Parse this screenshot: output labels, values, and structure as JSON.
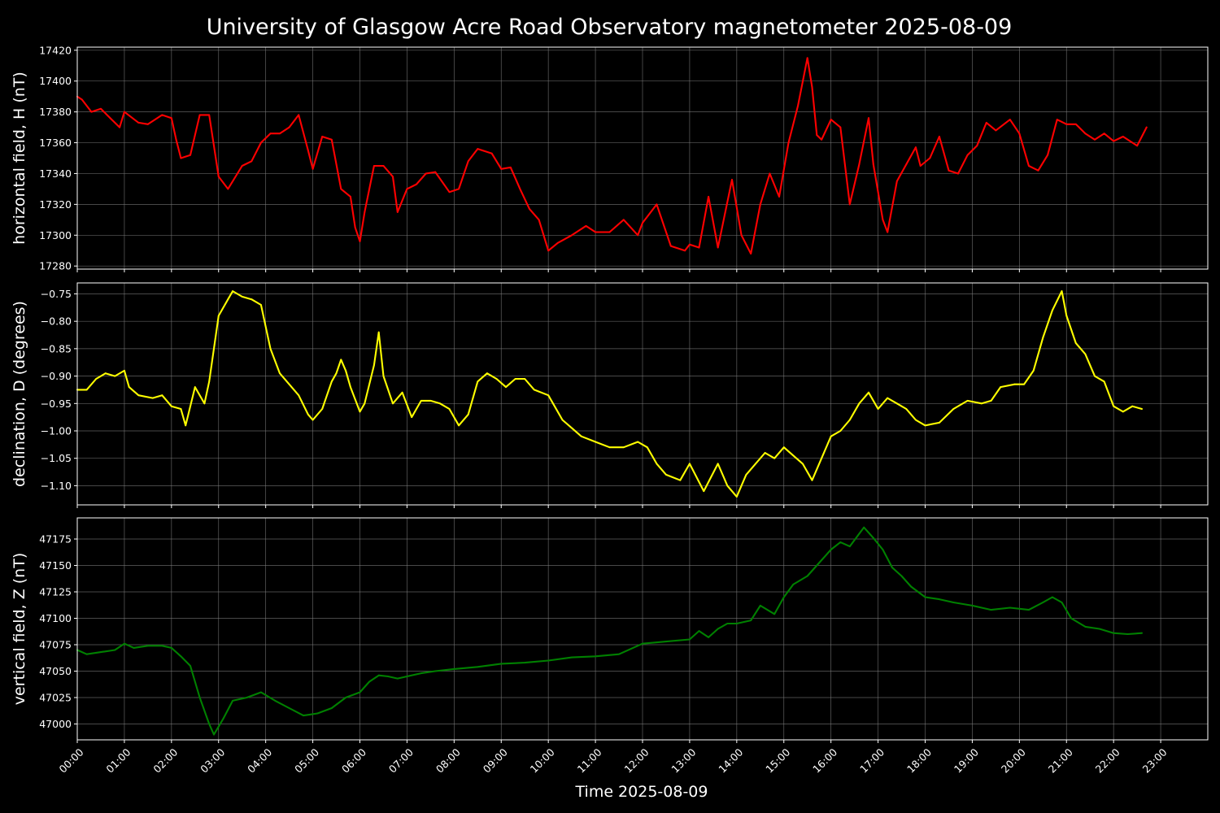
{
  "title": "University of Glasgow Acre Road Observatory magnetometer 2025-08-09",
  "xlabel": "Time 2025-08-09",
  "x_ticks": [
    "00:00",
    "01:00",
    "02:00",
    "03:00",
    "04:00",
    "05:00",
    "06:00",
    "07:00",
    "08:00",
    "09:00",
    "10:00",
    "11:00",
    "12:00",
    "13:00",
    "14:00",
    "15:00",
    "16:00",
    "17:00",
    "18:00",
    "19:00",
    "20:00",
    "21:00",
    "22:00",
    "23:00"
  ],
  "chart_data": [
    {
      "type": "line",
      "ylabel": "horizontal field, H (nT)",
      "xlim_hours": [
        0,
        24
      ],
      "ylim": [
        17278,
        17422
      ],
      "yticks": [
        17280,
        17300,
        17320,
        17340,
        17360,
        17380,
        17400,
        17420
      ],
      "ytick_labels": [
        "17280",
        "17300",
        "17320",
        "17340",
        "17360",
        "17380",
        "17400",
        "17420"
      ],
      "grid": true,
      "color": "#ff0000",
      "x_hours": [
        0.0,
        0.1,
        0.3,
        0.5,
        0.7,
        0.9,
        1.0,
        1.3,
        1.5,
        1.8,
        2.0,
        2.1,
        2.2,
        2.4,
        2.6,
        2.8,
        3.0,
        3.2,
        3.5,
        3.7,
        3.9,
        4.1,
        4.3,
        4.5,
        4.7,
        4.9,
        5.0,
        5.2,
        5.4,
        5.6,
        5.8,
        5.9,
        6.0,
        6.1,
        6.3,
        6.5,
        6.7,
        6.8,
        7.0,
        7.2,
        7.4,
        7.6,
        7.9,
        8.1,
        8.3,
        8.5,
        8.8,
        9.0,
        9.2,
        9.4,
        9.6,
        9.8,
        10.0,
        10.2,
        10.5,
        10.8,
        11.0,
        11.3,
        11.6,
        11.9,
        12.0,
        12.3,
        12.6,
        12.9,
        13.0,
        13.2,
        13.4,
        13.6,
        13.9,
        14.1,
        14.3,
        14.5,
        14.7,
        14.9,
        15.1,
        15.3,
        15.5,
        15.6,
        15.7,
        15.8,
        16.0,
        16.2,
        16.4,
        16.6,
        16.8,
        16.9,
        17.1,
        17.2,
        17.4,
        17.6,
        17.8,
        17.9,
        18.1,
        18.3,
        18.5,
        18.7,
        18.9,
        19.1,
        19.3,
        19.5,
        19.8,
        20.0,
        20.2,
        20.4,
        20.6,
        20.8,
        21.0,
        21.2,
        21.4,
        21.6,
        21.8,
        22.0,
        22.2,
        22.5,
        22.7
      ],
      "values": [
        17390,
        17388,
        17380,
        17382,
        17376,
        17370,
        17380,
        17373,
        17372,
        17378,
        17376,
        17362,
        17350,
        17352,
        17378,
        17378,
        17338,
        17330,
        17345,
        17348,
        17360,
        17366,
        17366,
        17370,
        17378,
        17355,
        17343,
        17364,
        17362,
        17330,
        17325,
        17305,
        17296,
        17315,
        17345,
        17345,
        17338,
        17315,
        17330,
        17333,
        17340,
        17341,
        17328,
        17330,
        17348,
        17356,
        17353,
        17343,
        17344,
        17330,
        17317,
        17310,
        17290,
        17295,
        17300,
        17306,
        17302,
        17302,
        17310,
        17300,
        17308,
        17320,
        17293,
        17290,
        17294,
        17292,
        17325,
        17292,
        17336,
        17300,
        17288,
        17320,
        17340,
        17325,
        17360,
        17384,
        17415,
        17396,
        17365,
        17362,
        17375,
        17370,
        17320,
        17346,
        17376,
        17346,
        17310,
        17302,
        17335,
        17346,
        17357,
        17345,
        17350,
        17364,
        17342,
        17340,
        17352,
        17358,
        17373,
        17368,
        17375,
        17366,
        17345,
        17342,
        17352,
        17375,
        17372,
        17372,
        17366,
        17362,
        17366,
        17361,
        17364,
        17358,
        17370
      ]
    },
    {
      "type": "line",
      "ylabel": "declination, D (degrees)",
      "xlim_hours": [
        0,
        24
      ],
      "ylim": [
        -1.135,
        -0.73
      ],
      "yticks": [
        -1.1,
        -1.05,
        -1.0,
        -0.95,
        -0.9,
        -0.85,
        -0.8,
        -0.75
      ],
      "ytick_labels": [
        "−1.10",
        "−1.05",
        "−1.00",
        "−0.95",
        "−0.90",
        "−0.85",
        "−0.80",
        "−0.75"
      ],
      "grid": true,
      "color": "#ffff00",
      "x_hours": [
        0.0,
        0.2,
        0.4,
        0.6,
        0.8,
        1.0,
        1.1,
        1.3,
        1.6,
        1.8,
        2.0,
        2.2,
        2.3,
        2.5,
        2.7,
        2.8,
        3.0,
        3.2,
        3.3,
        3.5,
        3.7,
        3.9,
        4.1,
        4.3,
        4.5,
        4.7,
        4.9,
        5.0,
        5.2,
        5.4,
        5.5,
        5.6,
        5.7,
        5.8,
        6.0,
        6.1,
        6.3,
        6.4,
        6.5,
        6.7,
        6.9,
        7.1,
        7.3,
        7.5,
        7.7,
        7.9,
        8.1,
        8.3,
        8.5,
        8.7,
        8.9,
        9.1,
        9.3,
        9.5,
        9.7,
        10.0,
        10.3,
        10.5,
        10.7,
        11.0,
        11.3,
        11.6,
        11.9,
        12.1,
        12.3,
        12.5,
        12.8,
        13.0,
        13.3,
        13.6,
        13.8,
        14.0,
        14.2,
        14.4,
        14.6,
        14.8,
        15.0,
        15.2,
        15.4,
        15.6,
        15.8,
        16.0,
        16.2,
        16.4,
        16.6,
        16.8,
        17.0,
        17.2,
        17.4,
        17.6,
        17.8,
        18.0,
        18.3,
        18.6,
        18.9,
        19.2,
        19.4,
        19.6,
        19.9,
        20.1,
        20.3,
        20.5,
        20.7,
        20.9,
        21.0,
        21.2,
        21.4,
        21.6,
        21.8,
        22.0,
        22.2,
        22.4,
        22.6
      ],
      "values": [
        -0.925,
        -0.925,
        -0.905,
        -0.895,
        -0.9,
        -0.89,
        -0.92,
        -0.935,
        -0.94,
        -0.935,
        -0.955,
        -0.96,
        -0.99,
        -0.92,
        -0.95,
        -0.91,
        -0.79,
        -0.76,
        -0.745,
        -0.755,
        -0.76,
        -0.77,
        -0.85,
        -0.895,
        -0.915,
        -0.935,
        -0.97,
        -0.98,
        -0.96,
        -0.91,
        -0.895,
        -0.87,
        -0.89,
        -0.92,
        -0.965,
        -0.95,
        -0.88,
        -0.82,
        -0.9,
        -0.95,
        -0.93,
        -0.975,
        -0.945,
        -0.945,
        -0.95,
        -0.96,
        -0.99,
        -0.97,
        -0.91,
        -0.895,
        -0.905,
        -0.92,
        -0.905,
        -0.905,
        -0.925,
        -0.935,
        -0.98,
        -0.995,
        -1.01,
        -1.02,
        -1.03,
        -1.03,
        -1.02,
        -1.03,
        -1.06,
        -1.08,
        -1.09,
        -1.06,
        -1.11,
        -1.06,
        -1.1,
        -1.12,
        -1.08,
        -1.06,
        -1.04,
        -1.05,
        -1.03,
        -1.045,
        -1.06,
        -1.09,
        -1.05,
        -1.01,
        -1.0,
        -0.98,
        -0.95,
        -0.93,
        -0.96,
        -0.94,
        -0.95,
        -0.96,
        -0.98,
        -0.99,
        -0.985,
        -0.96,
        -0.945,
        -0.95,
        -0.945,
        -0.92,
        -0.915,
        -0.915,
        -0.89,
        -0.83,
        -0.78,
        -0.745,
        -0.79,
        -0.84,
        -0.86,
        -0.9,
        -0.91,
        -0.955,
        -0.965,
        -0.955,
        -0.96
      ]
    },
    {
      "type": "line",
      "ylabel": "vertical field, Z (nT)",
      "xlim_hours": [
        0,
        24
      ],
      "ylim": [
        46985,
        47195
      ],
      "yticks": [
        47000,
        47025,
        47050,
        47075,
        47100,
        47125,
        47150,
        47175
      ],
      "ytick_labels": [
        "47000",
        "47025",
        "47050",
        "47075",
        "47100",
        "47125",
        "47150",
        "47175"
      ],
      "grid": true,
      "color": "#008000",
      "x_hours": [
        0.0,
        0.2,
        0.5,
        0.8,
        1.0,
        1.2,
        1.5,
        1.8,
        2.0,
        2.2,
        2.4,
        2.6,
        2.8,
        2.9,
        3.1,
        3.3,
        3.6,
        3.9,
        4.2,
        4.5,
        4.8,
        5.1,
        5.4,
        5.7,
        6.0,
        6.2,
        6.4,
        6.6,
        6.8,
        7.0,
        7.3,
        7.6,
        8.0,
        8.5,
        9.0,
        9.5,
        10.0,
        10.5,
        11.0,
        11.5,
        12.0,
        12.5,
        13.0,
        13.2,
        13.4,
        13.6,
        13.8,
        14.0,
        14.3,
        14.5,
        14.8,
        15.0,
        15.2,
        15.5,
        15.8,
        16.0,
        16.2,
        16.4,
        16.6,
        16.7,
        16.9,
        17.1,
        17.3,
        17.5,
        17.7,
        18.0,
        18.3,
        18.6,
        19.0,
        19.4,
        19.8,
        20.2,
        20.5,
        20.7,
        20.9,
        21.1,
        21.4,
        21.7,
        22.0,
        22.3,
        22.6
      ],
      "values": [
        47070,
        47066,
        47068,
        47070,
        47076,
        47072,
        47074,
        47074,
        47072,
        47064,
        47055,
        47025,
        47000,
        46990,
        47005,
        47022,
        47025,
        47030,
        47022,
        47015,
        47008,
        47010,
        47015,
        47025,
        47030,
        47040,
        47046,
        47045,
        47043,
        47045,
        47048,
        47050,
        47052,
        47054,
        47057,
        47058,
        47060,
        47063,
        47064,
        47066,
        47076,
        47078,
        47080,
        47088,
        47082,
        47090,
        47095,
        47095,
        47098,
        47112,
        47104,
        47120,
        47132,
        47140,
        47155,
        47165,
        47172,
        47168,
        47180,
        47186,
        47176,
        47165,
        47148,
        47140,
        47130,
        47120,
        47118,
        47115,
        47112,
        47108,
        47110,
        47108,
        47115,
        47120,
        47115,
        47100,
        47092,
        47090,
        47086,
        47085,
        47086
      ]
    }
  ]
}
